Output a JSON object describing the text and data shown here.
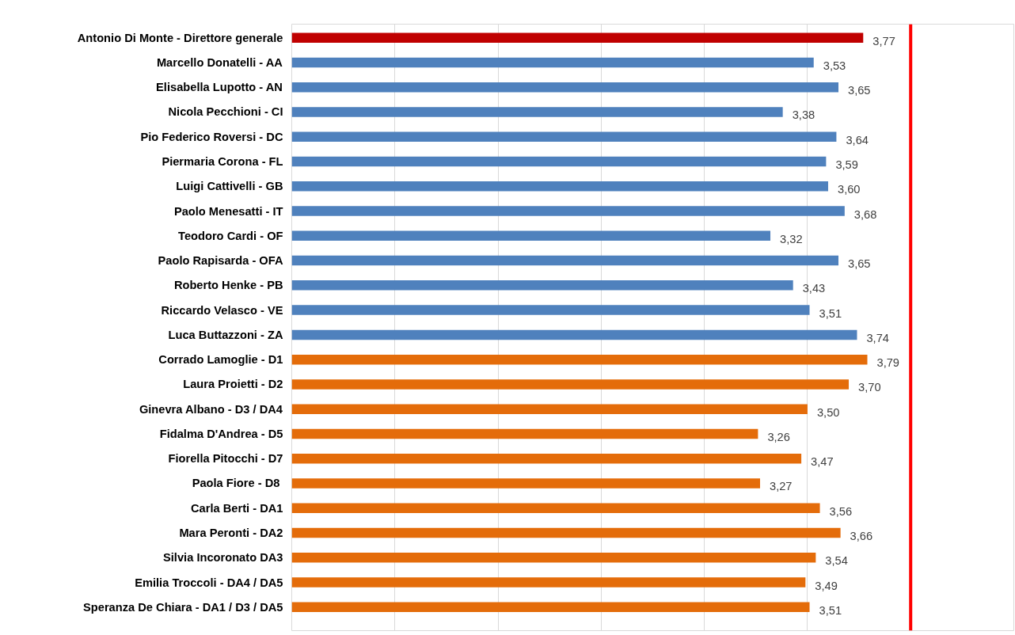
{
  "chart_data": {
    "type": "bar",
    "orientation": "horizontal",
    "categories": [
      "Antonio Di Monte - Direttore generale",
      "Marcello Donatelli - AA",
      "Elisabella Lupotto - AN",
      "Nicola Pecchioni - CI",
      "Pio Federico Roversi - DC",
      "Piermaria Corona - FL",
      "Luigi Cattivelli - GB",
      "Paolo Menesatti - IT",
      "Teodoro Cardi - OF",
      "Paolo Rapisarda - OFA",
      "Roberto Henke - PB",
      "Riccardo Velasco - VE",
      "Luca Buttazzoni - ZA",
      "Corrado Lamoglie - D1",
      "Laura Proietti - D2",
      "Ginevra Albano - D3 / DA4",
      "Fidalma D'Andrea - D5",
      "Fiorella Pitocchi - D7",
      "Paola Fiore  - D8",
      "Carla Berti - DA1",
      "Mara Peronti - DA2",
      "Silvia Incoronato DA3",
      "Emilia Troccoli - DA4 / DA5",
      "Speranza De Chiara - DA1 / D3 / DA5"
    ],
    "values": [
      3.77,
      3.53,
      3.65,
      3.38,
      3.64,
      3.59,
      3.6,
      3.68,
      3.32,
      3.65,
      3.43,
      3.51,
      3.74,
      3.79,
      3.7,
      3.5,
      3.26,
      3.47,
      3.27,
      3.56,
      3.66,
      3.54,
      3.49,
      3.51
    ],
    "colors": [
      "#c00000",
      "#4f81bd",
      "#4f81bd",
      "#4f81bd",
      "#4f81bd",
      "#4f81bd",
      "#4f81bd",
      "#4f81bd",
      "#4f81bd",
      "#4f81bd",
      "#4f81bd",
      "#4f81bd",
      "#4f81bd",
      "#e46c0a",
      "#e46c0a",
      "#e46c0a",
      "#e46c0a",
      "#e46c0a",
      "#e46c0a",
      "#e46c0a",
      "#e46c0a",
      "#e46c0a",
      "#e46c0a",
      "#e46c0a"
    ],
    "value_labels": [
      "3,77",
      "3,53",
      "3,65",
      "3,38",
      "3,64",
      "3,59",
      "3,60",
      "3,68",
      "3,32",
      "3,65",
      "3,43",
      "3,51",
      "3,74",
      "3,79",
      "3,70",
      "3,50",
      "3,26",
      "3,47",
      "3,27",
      "3,56",
      "3,66",
      "3,54",
      "3,49",
      "3,51"
    ],
    "xlim": [
      1,
      4.5
    ],
    "xticks": [
      {
        "value": 1,
        "label": null
      },
      {
        "value": 1.5,
        "label": null
      },
      {
        "value": 2,
        "label": null
      },
      {
        "value": 2.5,
        "label": null
      },
      {
        "value": 3,
        "label": null
      },
      {
        "value": 3.5,
        "label": null
      },
      {
        "value": 4,
        "label": null
      }
    ],
    "grid": "x",
    "tick_labels": "y",
    "ref_lines": [
      {
        "axis": "x",
        "value": 4,
        "label": null,
        "color": "#ff0000"
      }
    ]
  }
}
